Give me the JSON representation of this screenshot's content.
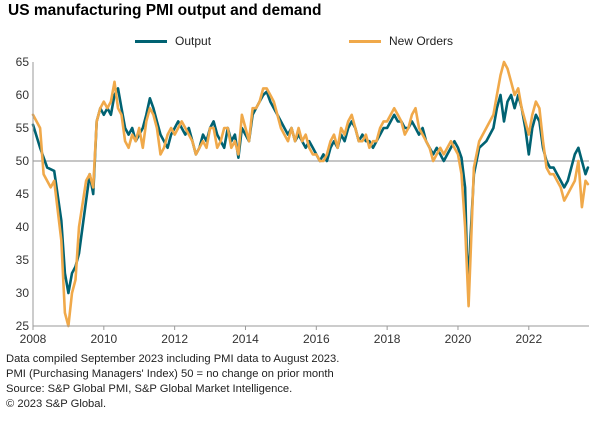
{
  "title": "US manufacturing PMI output and demand",
  "notes": [
    "Data compiled September 2023 including PMI data to August 2023.",
    "PMI (Purchasing Managers' Index) 50 = no change on prior month",
    "Source: S&P Global PMI, S&P Global Market Intelligence.",
    "© 2023 S&P Global."
  ],
  "chart_data": {
    "type": "line",
    "title": "US manufacturing PMI output and demand",
    "xlabel": "",
    "ylabel": "",
    "xlim": [
      2008.0,
      2023.7
    ],
    "ylim": [
      25,
      65
    ],
    "yticks": [
      25,
      30,
      35,
      40,
      45,
      50,
      55,
      60,
      65
    ],
    "xticks": [
      "2008",
      "2010",
      "2012",
      "2014",
      "2016",
      "2018",
      "2020",
      "2022"
    ],
    "reference_line": 50,
    "legend_position": "top-center",
    "series": [
      {
        "name": "Output",
        "color": "#006272",
        "points": [
          [
            2008.0,
            55.5
          ],
          [
            2008.2,
            52
          ],
          [
            2008.4,
            49
          ],
          [
            2008.6,
            48.5
          ],
          [
            2008.8,
            41
          ],
          [
            2008.9,
            33
          ],
          [
            2009.0,
            30
          ],
          [
            2009.1,
            33
          ],
          [
            2009.2,
            34
          ],
          [
            2009.3,
            36
          ],
          [
            2009.5,
            44
          ],
          [
            2009.6,
            48
          ],
          [
            2009.7,
            45
          ],
          [
            2009.8,
            56
          ],
          [
            2009.9,
            58
          ],
          [
            2010.0,
            57
          ],
          [
            2010.1,
            58
          ],
          [
            2010.2,
            57
          ],
          [
            2010.3,
            60
          ],
          [
            2010.4,
            61
          ],
          [
            2010.5,
            58
          ],
          [
            2010.6,
            55
          ],
          [
            2010.7,
            54
          ],
          [
            2010.8,
            55
          ],
          [
            2010.9,
            53
          ],
          [
            2011.0,
            54
          ],
          [
            2011.1,
            55
          ],
          [
            2011.2,
            57
          ],
          [
            2011.3,
            59.5
          ],
          [
            2011.4,
            58
          ],
          [
            2011.5,
            56
          ],
          [
            2011.6,
            54
          ],
          [
            2011.7,
            53
          ],
          [
            2011.8,
            52
          ],
          [
            2011.9,
            54
          ],
          [
            2012.0,
            55
          ],
          [
            2012.1,
            56
          ],
          [
            2012.2,
            55
          ],
          [
            2012.3,
            54
          ],
          [
            2012.4,
            55
          ],
          [
            2012.5,
            53
          ],
          [
            2012.6,
            51
          ],
          [
            2012.7,
            52
          ],
          [
            2012.8,
            54
          ],
          [
            2012.9,
            53
          ],
          [
            2013.0,
            55
          ],
          [
            2013.1,
            56
          ],
          [
            2013.2,
            54
          ],
          [
            2013.3,
            53
          ],
          [
            2013.4,
            52
          ],
          [
            2013.5,
            55
          ],
          [
            2013.6,
            53
          ],
          [
            2013.7,
            54
          ],
          [
            2013.8,
            50.5
          ],
          [
            2013.9,
            55
          ],
          [
            2014.0,
            54
          ],
          [
            2014.1,
            53
          ],
          [
            2014.2,
            57
          ],
          [
            2014.3,
            58
          ],
          [
            2014.4,
            59
          ],
          [
            2014.5,
            60
          ],
          [
            2014.6,
            60.5
          ],
          [
            2014.7,
            59
          ],
          [
            2014.8,
            58
          ],
          [
            2014.9,
            57
          ],
          [
            2015.0,
            56
          ],
          [
            2015.1,
            55
          ],
          [
            2015.2,
            54
          ],
          [
            2015.3,
            55
          ],
          [
            2015.4,
            53
          ],
          [
            2015.5,
            54
          ],
          [
            2015.6,
            53
          ],
          [
            2015.7,
            52
          ],
          [
            2015.8,
            53
          ],
          [
            2015.9,
            52
          ],
          [
            2016.0,
            51
          ],
          [
            2016.1,
            50
          ],
          [
            2016.2,
            51
          ],
          [
            2016.3,
            50
          ],
          [
            2016.4,
            52
          ],
          [
            2016.5,
            53
          ],
          [
            2016.6,
            52
          ],
          [
            2016.7,
            54
          ],
          [
            2016.8,
            53
          ],
          [
            2016.9,
            55
          ],
          [
            2017.0,
            56
          ],
          [
            2017.1,
            55
          ],
          [
            2017.2,
            53
          ],
          [
            2017.3,
            54
          ],
          [
            2017.4,
            53
          ],
          [
            2017.5,
            53
          ],
          [
            2017.6,
            52
          ],
          [
            2017.7,
            53
          ],
          [
            2017.8,
            54
          ],
          [
            2017.9,
            55
          ],
          [
            2018.0,
            55
          ],
          [
            2018.1,
            56
          ],
          [
            2018.2,
            57
          ],
          [
            2018.3,
            56
          ],
          [
            2018.4,
            56
          ],
          [
            2018.5,
            55
          ],
          [
            2018.6,
            55
          ],
          [
            2018.7,
            56
          ],
          [
            2018.8,
            55
          ],
          [
            2018.9,
            54
          ],
          [
            2019.0,
            55
          ],
          [
            2019.1,
            53
          ],
          [
            2019.2,
            52
          ],
          [
            2019.3,
            51
          ],
          [
            2019.4,
            52
          ],
          [
            2019.5,
            51
          ],
          [
            2019.6,
            50
          ],
          [
            2019.7,
            51
          ],
          [
            2019.8,
            52
          ],
          [
            2019.9,
            53
          ],
          [
            2020.0,
            52
          ],
          [
            2020.1,
            50.5
          ],
          [
            2020.2,
            46
          ],
          [
            2020.25,
            36
          ],
          [
            2020.3,
            32
          ],
          [
            2020.35,
            38
          ],
          [
            2020.45,
            48
          ],
          [
            2020.6,
            52
          ],
          [
            2020.8,
            53
          ],
          [
            2021.0,
            55
          ],
          [
            2021.1,
            58
          ],
          [
            2021.2,
            60
          ],
          [
            2021.3,
            56
          ],
          [
            2021.4,
            59
          ],
          [
            2021.5,
            60
          ],
          [
            2021.6,
            58
          ],
          [
            2021.7,
            60
          ],
          [
            2021.8,
            58
          ],
          [
            2021.9,
            55
          ],
          [
            2022.0,
            51
          ],
          [
            2022.1,
            55
          ],
          [
            2022.2,
            57
          ],
          [
            2022.3,
            56
          ],
          [
            2022.4,
            52
          ],
          [
            2022.5,
            50
          ],
          [
            2022.6,
            49
          ],
          [
            2022.7,
            49
          ],
          [
            2022.8,
            48
          ],
          [
            2022.9,
            47
          ],
          [
            2023.0,
            46
          ],
          [
            2023.1,
            47
          ],
          [
            2023.2,
            49
          ],
          [
            2023.3,
            51
          ],
          [
            2023.4,
            52
          ],
          [
            2023.5,
            50
          ],
          [
            2023.6,
            48
          ],
          [
            2023.67,
            49
          ]
        ]
      },
      {
        "name": "New Orders",
        "color": "#F0A94A",
        "points": [
          [
            2008.0,
            57
          ],
          [
            2008.2,
            55
          ],
          [
            2008.3,
            48
          ],
          [
            2008.5,
            46
          ],
          [
            2008.6,
            47
          ],
          [
            2008.8,
            38
          ],
          [
            2008.9,
            27
          ],
          [
            2009.0,
            25
          ],
          [
            2009.1,
            30
          ],
          [
            2009.2,
            32
          ],
          [
            2009.3,
            40
          ],
          [
            2009.5,
            47
          ],
          [
            2009.6,
            48
          ],
          [
            2009.7,
            46
          ],
          [
            2009.8,
            56
          ],
          [
            2009.9,
            58
          ],
          [
            2010.0,
            59
          ],
          [
            2010.1,
            58
          ],
          [
            2010.2,
            59
          ],
          [
            2010.3,
            62
          ],
          [
            2010.4,
            58
          ],
          [
            2010.5,
            57
          ],
          [
            2010.6,
            53
          ],
          [
            2010.7,
            52
          ],
          [
            2010.8,
            54
          ],
          [
            2010.9,
            53
          ],
          [
            2011.0,
            55
          ],
          [
            2011.1,
            52
          ],
          [
            2011.2,
            56
          ],
          [
            2011.3,
            58
          ],
          [
            2011.4,
            57
          ],
          [
            2011.5,
            55
          ],
          [
            2011.6,
            51
          ],
          [
            2011.7,
            52
          ],
          [
            2011.8,
            54
          ],
          [
            2011.9,
            55
          ],
          [
            2012.0,
            54
          ],
          [
            2012.1,
            55
          ],
          [
            2012.2,
            56
          ],
          [
            2012.3,
            55
          ],
          [
            2012.4,
            54
          ],
          [
            2012.5,
            53
          ],
          [
            2012.6,
            51
          ],
          [
            2012.7,
            52
          ],
          [
            2012.8,
            53
          ],
          [
            2012.9,
            52
          ],
          [
            2013.0,
            55
          ],
          [
            2013.1,
            55
          ],
          [
            2013.2,
            52
          ],
          [
            2013.3,
            53
          ],
          [
            2013.4,
            55
          ],
          [
            2013.5,
            55
          ],
          [
            2013.6,
            52
          ],
          [
            2013.7,
            53
          ],
          [
            2013.8,
            51
          ],
          [
            2013.9,
            57
          ],
          [
            2014.0,
            55
          ],
          [
            2014.1,
            53
          ],
          [
            2014.2,
            58
          ],
          [
            2014.3,
            58
          ],
          [
            2014.4,
            59
          ],
          [
            2014.5,
            61
          ],
          [
            2014.6,
            61
          ],
          [
            2014.7,
            60
          ],
          [
            2014.8,
            59
          ],
          [
            2014.9,
            57
          ],
          [
            2015.0,
            55
          ],
          [
            2015.1,
            54
          ],
          [
            2015.2,
            53
          ],
          [
            2015.3,
            55
          ],
          [
            2015.4,
            53
          ],
          [
            2015.5,
            55
          ],
          [
            2015.6,
            53
          ],
          [
            2015.7,
            54
          ],
          [
            2015.8,
            52
          ],
          [
            2015.9,
            51
          ],
          [
            2016.0,
            51
          ],
          [
            2016.1,
            50
          ],
          [
            2016.2,
            50
          ],
          [
            2016.3,
            51
          ],
          [
            2016.4,
            53
          ],
          [
            2016.5,
            54
          ],
          [
            2016.6,
            52
          ],
          [
            2016.7,
            55
          ],
          [
            2016.8,
            54
          ],
          [
            2016.9,
            56
          ],
          [
            2017.0,
            57
          ],
          [
            2017.1,
            55
          ],
          [
            2017.2,
            53
          ],
          [
            2017.3,
            53
          ],
          [
            2017.4,
            54
          ],
          [
            2017.5,
            52
          ],
          [
            2017.6,
            53
          ],
          [
            2017.7,
            53
          ],
          [
            2017.8,
            55
          ],
          [
            2017.9,
            56
          ],
          [
            2018.0,
            56
          ],
          [
            2018.1,
            57
          ],
          [
            2018.2,
            58
          ],
          [
            2018.3,
            57
          ],
          [
            2018.4,
            56
          ],
          [
            2018.5,
            54
          ],
          [
            2018.6,
            55
          ],
          [
            2018.7,
            57
          ],
          [
            2018.8,
            58
          ],
          [
            2018.9,
            55
          ],
          [
            2019.0,
            54
          ],
          [
            2019.1,
            53
          ],
          [
            2019.2,
            52
          ],
          [
            2019.3,
            50
          ],
          [
            2019.4,
            51
          ],
          [
            2019.5,
            52
          ],
          [
            2019.6,
            51
          ],
          [
            2019.7,
            52
          ],
          [
            2019.8,
            53
          ],
          [
            2019.9,
            52
          ],
          [
            2020.0,
            51
          ],
          [
            2020.1,
            48
          ],
          [
            2020.2,
            40
          ],
          [
            2020.3,
            28
          ],
          [
            2020.35,
            35
          ],
          [
            2020.45,
            49
          ],
          [
            2020.6,
            53
          ],
          [
            2020.8,
            55
          ],
          [
            2021.0,
            57
          ],
          [
            2021.1,
            60
          ],
          [
            2021.2,
            63
          ],
          [
            2021.3,
            65
          ],
          [
            2021.4,
            64
          ],
          [
            2021.5,
            62
          ],
          [
            2021.6,
            60
          ],
          [
            2021.7,
            61
          ],
          [
            2021.8,
            58
          ],
          [
            2021.9,
            56
          ],
          [
            2022.0,
            54
          ],
          [
            2022.1,
            57
          ],
          [
            2022.2,
            59
          ],
          [
            2022.3,
            58
          ],
          [
            2022.4,
            53
          ],
          [
            2022.5,
            49
          ],
          [
            2022.6,
            48
          ],
          [
            2022.7,
            48
          ],
          [
            2022.8,
            47
          ],
          [
            2022.9,
            46
          ],
          [
            2023.0,
            44
          ],
          [
            2023.1,
            45
          ],
          [
            2023.2,
            46
          ],
          [
            2023.3,
            47
          ],
          [
            2023.4,
            50
          ],
          [
            2023.5,
            43
          ],
          [
            2023.6,
            47
          ],
          [
            2023.67,
            46.5
          ]
        ]
      }
    ]
  }
}
